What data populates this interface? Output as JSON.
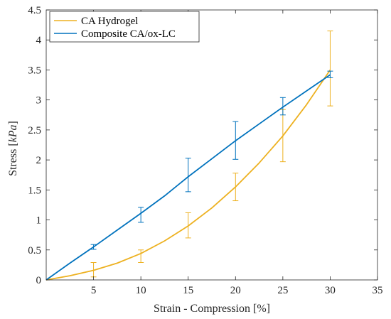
{
  "chart_data": {
    "type": "line",
    "xlabel": "Strain - Compression [%]",
    "ylabel_prefix": "Stress [",
    "ylabel_unit": "kPa",
    "ylabel_suffix": "]",
    "xlim": [
      0,
      35
    ],
    "ylim": [
      0,
      4.5
    ],
    "xticks": [
      5,
      10,
      15,
      20,
      25,
      30,
      35
    ],
    "yticks": [
      0,
      0.5,
      1,
      1.5,
      2,
      2.5,
      3,
      3.5,
      4,
      4.5
    ],
    "xtick_labels": [
      "5",
      "10",
      "15",
      "20",
      "25",
      "30",
      "35"
    ],
    "ytick_labels": [
      "0",
      "0.5",
      "1",
      "1.5",
      "2",
      "2.5",
      "3",
      "3.5",
      "4",
      "4.5"
    ],
    "grid": false,
    "legend_position": "top-left",
    "series": [
      {
        "name": "CA Hydrogel",
        "color": "#EDB120",
        "curve": {
          "x": [
            0,
            2.5,
            5,
            7.5,
            10,
            12.5,
            15,
            17.5,
            20,
            22.5,
            25,
            27.5,
            30
          ],
          "y": [
            0,
            0.07,
            0.16,
            0.28,
            0.44,
            0.65,
            0.9,
            1.2,
            1.55,
            1.95,
            2.4,
            2.92,
            3.5
          ]
        },
        "errorbars": [
          {
            "x": 5,
            "y": 0.16,
            "low": 0.05,
            "high": 0.29
          },
          {
            "x": 10,
            "y": 0.44,
            "low": 0.29,
            "high": 0.5
          },
          {
            "x": 15,
            "y": 0.9,
            "low": 0.7,
            "high": 1.12
          },
          {
            "x": 20,
            "y": 1.55,
            "low": 1.32,
            "high": 1.78
          },
          {
            "x": 25,
            "y": 2.4,
            "low": 1.97,
            "high": 2.84
          },
          {
            "x": 30,
            "y": 3.5,
            "low": 2.9,
            "high": 4.15
          }
        ]
      },
      {
        "name": "Composite CA/ox-LC",
        "color": "#0072BD",
        "curve": {
          "x": [
            0,
            2.5,
            5,
            7.5,
            10,
            12.5,
            15,
            17.5,
            20,
            22.5,
            25,
            27.5,
            30
          ],
          "y": [
            0,
            0.28,
            0.55,
            0.83,
            1.11,
            1.4,
            1.72,
            2.02,
            2.32,
            2.6,
            2.88,
            3.15,
            3.42
          ]
        },
        "errorbars": [
          {
            "x": 5,
            "y": 0.55,
            "low": 0.51,
            "high": 0.59
          },
          {
            "x": 10,
            "y": 1.11,
            "low": 0.96,
            "high": 1.21
          },
          {
            "x": 15,
            "y": 1.72,
            "low": 1.47,
            "high": 2.03
          },
          {
            "x": 20,
            "y": 2.32,
            "low": 2.01,
            "high": 2.64
          },
          {
            "x": 25,
            "y": 2.88,
            "low": 2.75,
            "high": 3.04
          },
          {
            "x": 30,
            "y": 3.42,
            "low": 3.37,
            "high": 3.48
          }
        ]
      }
    ]
  }
}
